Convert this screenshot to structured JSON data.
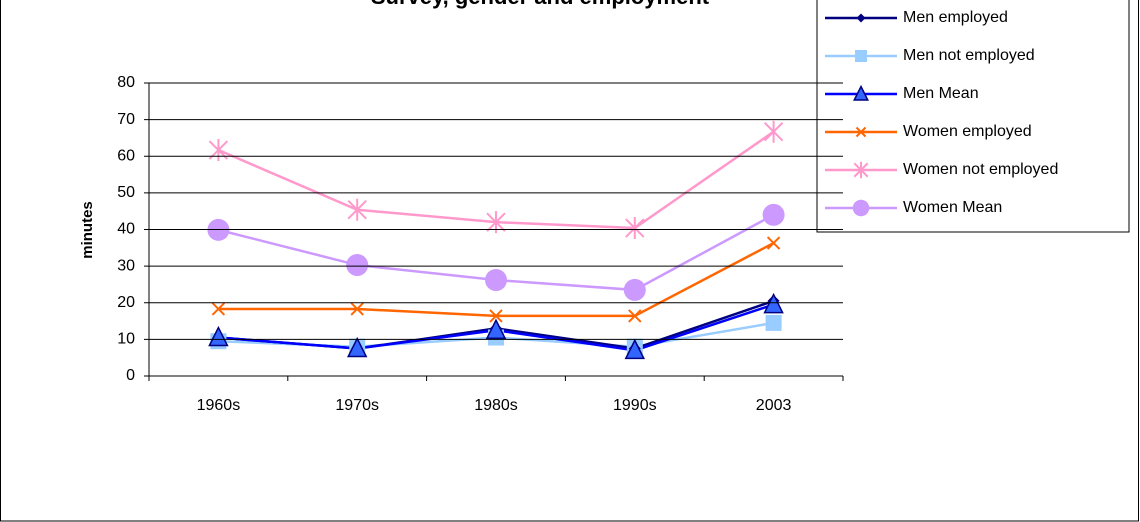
{
  "chart_data": {
    "type": "line",
    "title": "Survey, gender and employment",
    "y_label": "minutes",
    "categories": [
      "1960s",
      "1970s",
      "1980s",
      "1990s",
      "2003"
    ],
    "series": [
      {
        "name": "Men employed",
        "color": "#000080",
        "marker": "diamond",
        "values": [
          10.5,
          7.5,
          13,
          7.5,
          20.5
        ]
      },
      {
        "name": "Men not employed",
        "color": "#99ccff",
        "marker": "square",
        "values": [
          9.5,
          8,
          10.5,
          8,
          14.5
        ]
      },
      {
        "name": "Men Mean",
        "color": "#0000ff",
        "marker": "triangle",
        "values": [
          10.5,
          7.5,
          12.5,
          7,
          19.5
        ]
      },
      {
        "name": "Women employed",
        "color": "#ff6600",
        "marker": "x",
        "values": [
          18.3,
          18.3,
          16.4,
          16.4,
          36.3
        ]
      },
      {
        "name": "Women not employed",
        "color": "#ff99cc",
        "marker": "star",
        "values": [
          61.7,
          45.4,
          42,
          40.4,
          66.7
        ]
      },
      {
        "name": "Women Mean",
        "color": "#cc99ff",
        "marker": "circle",
        "values": [
          39.9,
          30.3,
          26.2,
          23.5,
          44
        ]
      }
    ],
    "ylim": [
      0,
      80
    ],
    "yticks": [
      0,
      10,
      20,
      30,
      40,
      50,
      60,
      70,
      80
    ],
    "grid": true,
    "legend": "top-right"
  }
}
